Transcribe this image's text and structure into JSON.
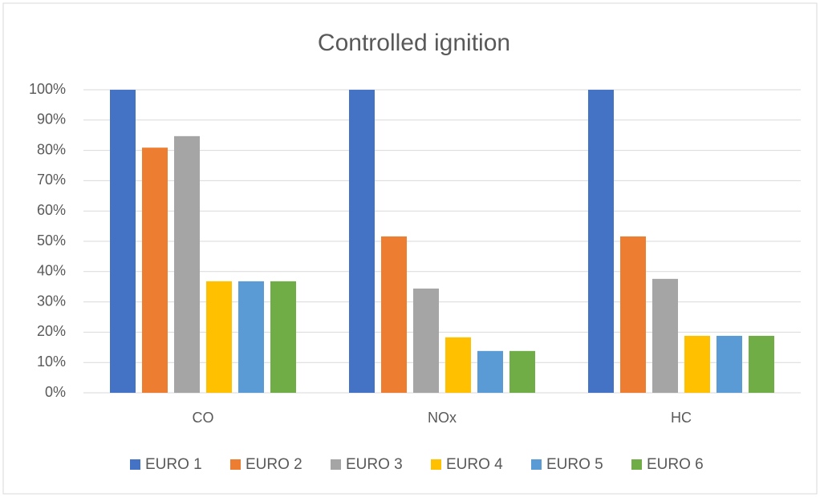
{
  "chart_data": {
    "type": "bar",
    "title": "Controlled ignition",
    "categories": [
      "CO",
      "NOx",
      "HC"
    ],
    "series": [
      {
        "name": "EURO 1",
        "color": "#4472c4",
        "values": [
          100,
          100,
          100
        ]
      },
      {
        "name": "EURO 2",
        "color": "#ed7d31",
        "values": [
          80.9,
          51.6,
          51.6
        ]
      },
      {
        "name": "EURO 3",
        "color": "#a5a5a5",
        "values": [
          84.7,
          34.4,
          37.6
        ]
      },
      {
        "name": "EURO 4",
        "color": "#ffc000",
        "values": [
          36.8,
          18.3,
          18.8
        ]
      },
      {
        "name": "EURO 5",
        "color": "#5b9bd5",
        "values": [
          36.8,
          13.8,
          18.8
        ]
      },
      {
        "name": "EURO 6",
        "color": "#70ad47",
        "values": [
          36.8,
          13.8,
          18.8
        ]
      }
    ],
    "ylim": [
      0,
      100
    ],
    "yticks": [
      {
        "value": 0,
        "label": "0%"
      },
      {
        "value": 10,
        "label": "10%"
      },
      {
        "value": 20,
        "label": "20%"
      },
      {
        "value": 30,
        "label": "30%"
      },
      {
        "value": 40,
        "label": "40%"
      },
      {
        "value": 50,
        "label": "50%"
      },
      {
        "value": 60,
        "label": "60%"
      },
      {
        "value": 70,
        "label": "70%"
      },
      {
        "value": 80,
        "label": "80%"
      },
      {
        "value": 90,
        "label": "90%"
      },
      {
        "value": 100,
        "label": "100%"
      }
    ],
    "grid": true,
    "legend": "bottom"
  }
}
